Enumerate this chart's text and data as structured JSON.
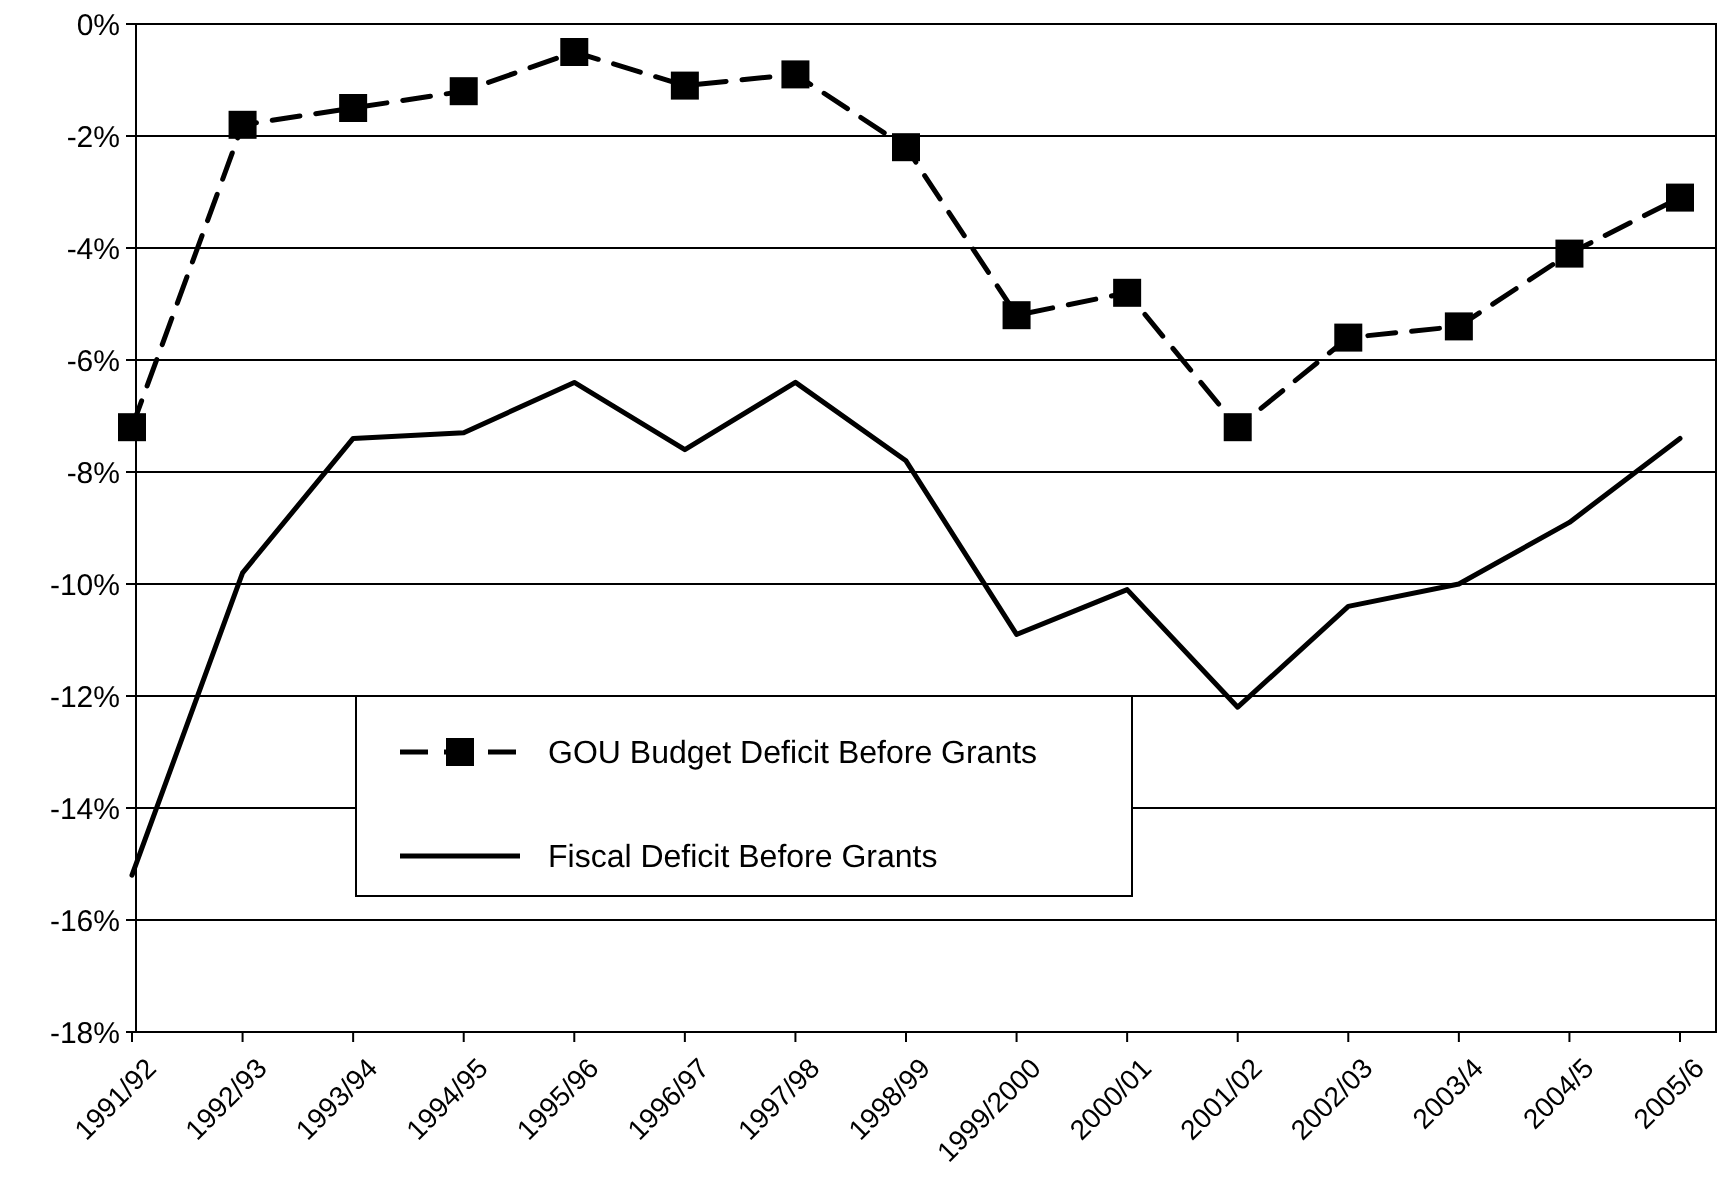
{
  "chart_data": {
    "type": "line",
    "categories": [
      "1991/92",
      "1992/93",
      "1993/94",
      "1994/95",
      "1995/96",
      "1996/97",
      "1997/98",
      "1998/99",
      "1999/2000",
      "2000/01",
      "2001/02",
      "2002/03",
      "2003/4",
      "2004/5",
      "2005/6"
    ],
    "series": [
      {
        "name": "GOU Budget Deficit Before Grants",
        "color": "#000000",
        "marker": "square",
        "line_style": "dashed",
        "values": [
          -7.2,
          -1.8,
          -1.5,
          -1.2,
          -0.5,
          -1.1,
          -0.9,
          -2.2,
          -5.2,
          -4.8,
          -7.2,
          -5.6,
          -5.4,
          -4.1,
          -3.1
        ]
      },
      {
        "name": "Fiscal Deficit Before Grants",
        "color": "#000000",
        "marker": "none",
        "line_style": "solid",
        "values": [
          -15.2,
          -9.8,
          -7.4,
          -7.3,
          -6.4,
          -7.6,
          -6.4,
          -7.8,
          -10.9,
          -10.1,
          -12.2,
          -10.4,
          -10.0,
          -8.9,
          -7.4
        ]
      }
    ],
    "ylim": [
      -18,
      0
    ],
    "yticks": [
      {
        "value": 0,
        "label": "0%"
      },
      {
        "value": -2,
        "label": "-2%"
      },
      {
        "value": -4,
        "label": "-4%"
      },
      {
        "value": -6,
        "label": "-6%"
      },
      {
        "value": -8,
        "label": "-8%"
      },
      {
        "value": -10,
        "label": "-10%"
      },
      {
        "value": -12,
        "label": "-12%"
      },
      {
        "value": -14,
        "label": "-14%"
      },
      {
        "value": -16,
        "label": "-16%"
      },
      {
        "value": -18,
        "label": "-18%"
      }
    ],
    "grid": "y",
    "legend": "bottom left"
  }
}
